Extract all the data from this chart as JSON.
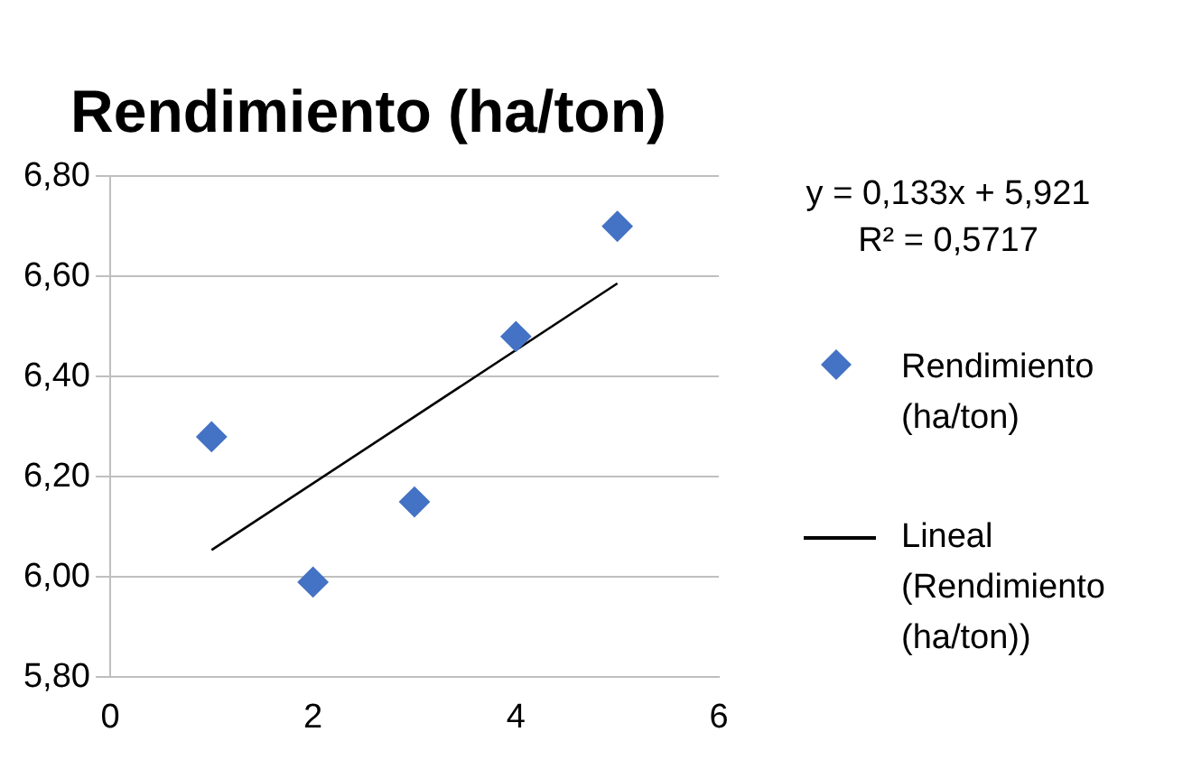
{
  "chart_data": {
    "type": "scatter",
    "title": "Rendimiento (ha/ton)",
    "annotations": [
      "y = 0,133x + 5,921",
      "R² = 0,5717"
    ],
    "series": [
      {
        "name": "Rendimiento (ha/ton)",
        "color": "#4472c4",
        "type": "scatter",
        "marker": "diamond",
        "x": [
          1,
          2,
          3,
          4,
          5
        ],
        "values": [
          6.28,
          5.99,
          6.15,
          6.48,
          6.7
        ]
      },
      {
        "name": "Lineal (Rendimiento (ha/ton))",
        "color": "#000000",
        "type": "line",
        "marker": "none",
        "x": [
          1,
          5
        ],
        "values": [
          6.054,
          6.586
        ]
      }
    ],
    "xlim": [
      0,
      6
    ],
    "xticks": [
      0,
      2,
      4,
      6
    ],
    "ylim": [
      5.8,
      6.8
    ],
    "yticks": [
      {
        "value": 5.8,
        "label": "5,80"
      },
      {
        "value": 6.0,
        "label": "6,00"
      },
      {
        "value": 6.2,
        "label": "6,20"
      },
      {
        "value": 6.4,
        "label": "6,40"
      },
      {
        "value": 6.6,
        "label": "6,60"
      },
      {
        "value": 6.8,
        "label": "6,80"
      }
    ],
    "grid": "y",
    "legend": "right"
  }
}
